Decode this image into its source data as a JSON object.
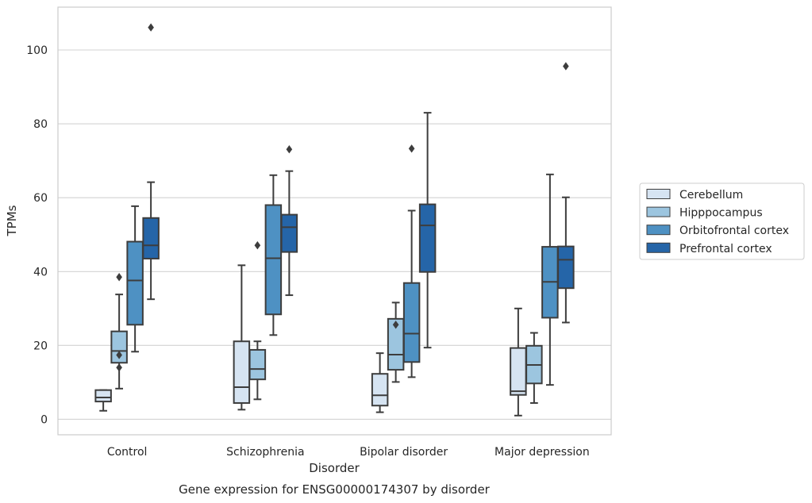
{
  "chart_data": {
    "type": "box",
    "title": "Gene expression for ENSG00000174307 by disorder",
    "xlabel": "Disorder",
    "ylabel": "TPMs",
    "ylim": [
      -4.2,
      111.6
    ],
    "yticks": [
      0,
      20,
      40,
      60,
      80,
      100
    ],
    "grid": "horizontal",
    "legend_position": "right",
    "categories": [
      "Control",
      "Schizophrenia",
      "Bipolar disorder",
      "Major depression"
    ],
    "series": [
      {
        "name": "Cerebellum",
        "color": "#d6e4f2",
        "boxes": [
          {
            "whisker_low": 2.3,
            "q1": 4.8,
            "median": 5.9,
            "q3": 7.9,
            "whisker_high": 7.9,
            "outliers": []
          },
          {
            "whisker_low": 2.6,
            "q1": 4.4,
            "median": 8.7,
            "q3": 21.1,
            "whisker_high": 41.7,
            "outliers": []
          },
          {
            "whisker_low": 1.9,
            "q1": 3.7,
            "median": 6.5,
            "q3": 12.3,
            "whisker_high": 17.9,
            "outliers": []
          },
          {
            "whisker_low": 1.0,
            "q1": 6.6,
            "median": 7.6,
            "q3": 19.3,
            "whisker_high": 30.0,
            "outliers": []
          }
        ]
      },
      {
        "name": "Hipppocampus",
        "color": "#9cc5df",
        "boxes": [
          {
            "whisker_low": 8.3,
            "q1": 15.3,
            "median": 18.5,
            "q3": 23.8,
            "whisker_high": 33.8,
            "outliers": [
              38.5,
              17.4,
              14.0
            ]
          },
          {
            "whisker_low": 5.4,
            "q1": 10.8,
            "median": 13.6,
            "q3": 18.8,
            "whisker_high": 21.1,
            "outliers": [
              47.1
            ]
          },
          {
            "whisker_low": 10.1,
            "q1": 13.4,
            "median": 17.5,
            "q3": 27.2,
            "whisker_high": 31.6,
            "outliers": [
              25.6
            ]
          },
          {
            "whisker_low": 4.4,
            "q1": 9.7,
            "median": 14.7,
            "q3": 19.9,
            "whisker_high": 23.4,
            "outliers": []
          }
        ]
      },
      {
        "name": "Orbitofrontal cortex",
        "color": "#4e91c3",
        "boxes": [
          {
            "whisker_low": 18.3,
            "q1": 25.6,
            "median": 37.6,
            "q3": 48.1,
            "whisker_high": 57.7,
            "outliers": []
          },
          {
            "whisker_low": 22.8,
            "q1": 28.4,
            "median": 43.6,
            "q3": 58.0,
            "whisker_high": 66.1,
            "outliers": []
          },
          {
            "whisker_low": 11.4,
            "q1": 15.5,
            "median": 23.2,
            "q3": 36.9,
            "whisker_high": 56.5,
            "outliers": [
              73.3
            ]
          },
          {
            "whisker_low": 9.3,
            "q1": 27.5,
            "median": 37.2,
            "q3": 46.7,
            "whisker_high": 66.3,
            "outliers": []
          }
        ]
      },
      {
        "name": "Prefrontal cortex",
        "color": "#2565a8",
        "boxes": [
          {
            "whisker_low": 32.5,
            "q1": 43.5,
            "median": 47.1,
            "q3": 54.5,
            "whisker_high": 64.2,
            "outliers": [
              106.1
            ]
          },
          {
            "whisker_low": 33.6,
            "q1": 45.3,
            "median": 52.0,
            "q3": 55.4,
            "whisker_high": 67.2,
            "outliers": [
              73.1
            ]
          },
          {
            "whisker_low": 19.4,
            "q1": 39.9,
            "median": 52.5,
            "q3": 58.2,
            "whisker_high": 83.0,
            "outliers": []
          },
          {
            "whisker_low": 26.2,
            "q1": 35.5,
            "median": 43.2,
            "q3": 46.8,
            "whisker_high": 60.1,
            "outliers": [
              95.6
            ]
          }
        ]
      }
    ]
  }
}
